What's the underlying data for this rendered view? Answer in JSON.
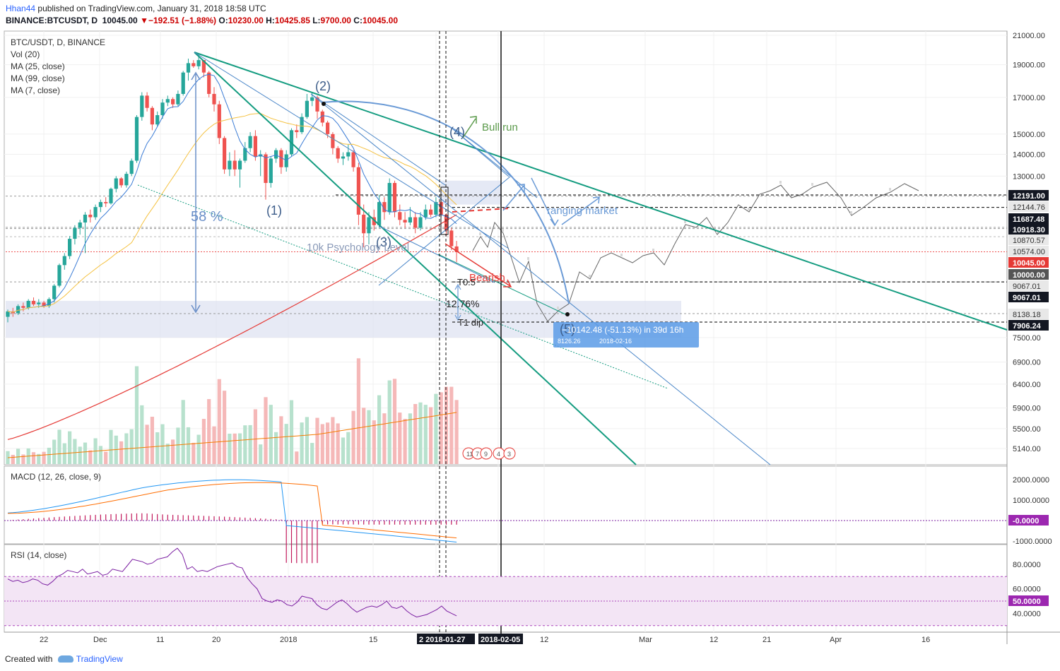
{
  "header": {
    "author": "Hhan44",
    "published_on": "published on TradingView.com, January 31, 2018 18:58 UTC",
    "symbol_line": "BINANCE:BTCUSDT, D",
    "last_value": "10045.00",
    "change": "−192.51 (−1.88%)",
    "open_label": "O:",
    "open": "10230.00",
    "high_label": "H:",
    "high": "10425.85",
    "low_label": "L:",
    "low": "9700.00",
    "close_label": "C:",
    "close": "10045.00"
  },
  "legend": {
    "title": "BTC/USDT, D, BINANCE",
    "items": [
      "Vol (20)",
      "MA (25, close)",
      "MA (99, close)",
      "MA (7, close)"
    ]
  },
  "macd_title": "MACD (12, 26, close, 9)",
  "rsi_title": "RSI (14, close)",
  "footer": {
    "created_with": "Created with",
    "brand": "TradingView"
  },
  "annotations": {
    "wave1": "(1)",
    "wave2": "(2)",
    "wave3": "(3)",
    "wave4": "(4)",
    "wave5": "(5)",
    "bull_run": "Bull run",
    "ranging": "ranging market",
    "psych": "10k Psychology Level",
    "bearish": "Bearish",
    "t05": "T0.5",
    "pct": "12.76%",
    "t1": "T1 dip",
    "drop_pct": "58 %",
    "measure": "−10142.48 (-51.13%) in 39d 16h",
    "measure_sub": "8126.26",
    "measure_date": "2018-02-16",
    "badge1": "11",
    "badge2": "7",
    "badge3": "9",
    "badge4": "4",
    "badge5": "3"
  },
  "colors": {
    "up": "#26a69a",
    "down": "#ef5350",
    "teal_line": "#149c80",
    "blue_line": "#4a86c8",
    "ma7": "#3a7bd5",
    "ma25": "#f5c242",
    "ma99": "#e53935",
    "macd": "#2196f3",
    "signal": "#ff6d00",
    "hist": "#c2185b",
    "rsi": "#7b1fa2",
    "rsi_band": "#f3e5f5"
  },
  "chart_data": {
    "type": "candlestick",
    "x_ticks": [
      "22",
      "Dec",
      "11",
      "20",
      "2018",
      "15",
      "2 2018-01-27",
      "2018-02-05",
      "12",
      "Mar",
      "12",
      "21",
      "Apr",
      "16"
    ],
    "price_axis": {
      "ticks": [
        21000,
        19000,
        17000,
        15000,
        14000,
        13000,
        7500,
        6900,
        6400,
        5900,
        5500,
        5140
      ],
      "labels": [
        "21000.00",
        "19000.00",
        "17000.00",
        "15000.00",
        "14000.00",
        "13000.00",
        "7500.00",
        "6900.00",
        "6400.00",
        "5900.00",
        "5500.00",
        "5140.00"
      ],
      "level_labels": [
        {
          "value": 12191.0,
          "text": "12191.00",
          "style": "black"
        },
        {
          "value": 12144.76,
          "text": "12144.76",
          "style": "grey"
        },
        {
          "value": 11687.48,
          "text": "11687.48",
          "style": "black"
        },
        {
          "value": 10918.3,
          "text": "10918.30",
          "style": "black"
        },
        {
          "value": 10870.57,
          "text": "10870.57",
          "style": "grey"
        },
        {
          "value": 10574.0,
          "text": "10574.00",
          "style": "grey"
        },
        {
          "value": 10045.0,
          "text": "10045.00",
          "style": "red"
        },
        {
          "value": 10000.0,
          "text": "10000.00",
          "style": "darkgrey"
        },
        {
          "value": 9067.01,
          "text": "9067.01",
          "style": "grey"
        },
        {
          "value": 9067.01,
          "text": "9067.01",
          "style": "black"
        },
        {
          "value": 8138.18,
          "text": "8138.18",
          "style": "grey"
        },
        {
          "value": 7906.24,
          "text": "7906.24",
          "style": "black"
        }
      ]
    },
    "macd_axis": {
      "labels": [
        "2000.0000",
        "1000.0000",
        "-0.0000",
        "-1000.0000"
      ],
      "values": [
        2000,
        1000,
        0,
        -1000
      ]
    },
    "rsi_axis": {
      "labels": [
        "80.0000",
        "60.0000",
        "50.0000",
        "40.0000"
      ],
      "values": [
        80,
        60,
        50,
        40
      ]
    },
    "candles": [
      [
        8050,
        8250,
        7900,
        8200
      ],
      [
        8200,
        8300,
        8050,
        8150
      ],
      [
        8150,
        8400,
        8100,
        8350
      ],
      [
        8350,
        8450,
        8200,
        8300
      ],
      [
        8300,
        8550,
        8250,
        8500
      ],
      [
        8500,
        8600,
        8350,
        8400
      ],
      [
        8400,
        8550,
        8300,
        8450
      ],
      [
        8450,
        8500,
        8300,
        8350
      ],
      [
        8350,
        8600,
        8300,
        8550
      ],
      [
        8550,
        9000,
        8450,
        8950
      ],
      [
        8950,
        9650,
        8900,
        9600
      ],
      [
        9600,
        10000,
        9450,
        9900
      ],
      [
        9900,
        10600,
        9800,
        10500
      ],
      [
        10500,
        11000,
        10300,
        10900
      ],
      [
        10900,
        11200,
        10650,
        11100
      ],
      [
        11100,
        11500,
        10000,
        11400
      ],
      [
        11400,
        11600,
        11100,
        11300
      ],
      [
        11300,
        11800,
        11200,
        11700
      ],
      [
        11700,
        12000,
        11500,
        11900
      ],
      [
        11900,
        12100,
        11700,
        11850
      ],
      [
        11850,
        12500,
        11800,
        12450
      ],
      [
        12450,
        13000,
        12300,
        12900
      ],
      [
        12900,
        12950,
        12500,
        12600
      ],
      [
        12600,
        13200,
        12500,
        13100
      ],
      [
        13100,
        13800,
        13000,
        13700
      ],
      [
        13700,
        16000,
        13600,
        15900
      ],
      [
        15900,
        17300,
        15700,
        17100
      ],
      [
        17100,
        17300,
        16200,
        16400
      ],
      [
        16400,
        16500,
        15200,
        15500
      ],
      [
        15500,
        16200,
        15400,
        16000
      ],
      [
        16000,
        16900,
        15800,
        16700
      ],
      [
        16700,
        17100,
        16500,
        16900
      ],
      [
        16900,
        17000,
        16400,
        16600
      ],
      [
        16600,
        17400,
        16500,
        17200
      ],
      [
        17200,
        18600,
        17100,
        18500
      ],
      [
        18500,
        19400,
        18000,
        19100
      ],
      [
        19100,
        19300,
        18800,
        18900
      ],
      [
        18900,
        19500,
        18700,
        19300
      ],
      [
        19300,
        19300,
        18200,
        18500
      ],
      [
        18500,
        18600,
        17000,
        17200
      ],
      [
        17200,
        17600,
        16200,
        16600
      ],
      [
        16600,
        16800,
        14500,
        14800
      ],
      [
        14800,
        14900,
        13100,
        13300
      ],
      [
        13300,
        14100,
        13000,
        13700
      ],
      [
        13700,
        14200,
        13000,
        13300
      ],
      [
        13300,
        13800,
        12500,
        13700
      ],
      [
        13700,
        14600,
        13600,
        14300
      ],
      [
        14300,
        15100,
        14100,
        14900
      ],
      [
        14900,
        15200,
        13700,
        13900
      ],
      [
        13900,
        14200,
        13000,
        14000
      ],
      [
        14000,
        14100,
        12000,
        12700
      ],
      [
        12700,
        13900,
        12500,
        13800
      ],
      [
        13800,
        14300,
        13600,
        14200
      ],
      [
        14200,
        14300,
        13100,
        13400
      ],
      [
        13400,
        14200,
        13200,
        14000
      ],
      [
        14000,
        15300,
        13900,
        15200
      ],
      [
        15200,
        15500,
        14800,
        15100
      ],
      [
        15100,
        16100,
        15000,
        15900
      ],
      [
        15900,
        17200,
        15800,
        16800
      ],
      [
        16800,
        17300,
        16500,
        17000
      ],
      [
        17000,
        17100,
        15800,
        16200
      ],
      [
        16200,
        16300,
        15400,
        15600
      ],
      [
        15600,
        15700,
        14800,
        15000
      ],
      [
        15000,
        15100,
        14000,
        14300
      ],
      [
        14300,
        14400,
        13600,
        13800
      ],
      [
        13800,
        14100,
        13500,
        13900
      ],
      [
        13900,
        14500,
        13700,
        14100
      ],
      [
        14100,
        14200,
        13200,
        13400
      ],
      [
        13400,
        13600,
        11000,
        11400
      ],
      [
        11400,
        11800,
        10200,
        10700
      ],
      [
        10700,
        11500,
        10300,
        11300
      ],
      [
        11300,
        11600,
        10800,
        11000
      ],
      [
        11000,
        12200,
        10900,
        11900
      ],
      [
        11900,
        12100,
        11200,
        11500
      ],
      [
        11500,
        12900,
        11400,
        12700
      ],
      [
        12700,
        12800,
        11300,
        11500
      ],
      [
        11500,
        11800,
        11000,
        11200
      ],
      [
        11200,
        11500,
        10900,
        11100
      ],
      [
        11100,
        11700,
        11000,
        11300
      ],
      [
        11300,
        11500,
        10700,
        10900
      ],
      [
        10900,
        11500,
        10800,
        11300
      ],
      [
        11300,
        11800,
        11200,
        11600
      ],
      [
        11600,
        11800,
        11300,
        11400
      ],
      [
        11400,
        12100,
        11300,
        11900
      ],
      [
        11900,
        11950,
        11300,
        11400
      ],
      [
        11400,
        11450,
        10600,
        10800
      ],
      [
        10800,
        10900,
        10100,
        10238
      ],
      [
        10230,
        10425,
        9700,
        10045
      ]
    ],
    "projection": [
      [
        669,
        355
      ],
      [
        680,
        335
      ],
      [
        690,
        350
      ],
      [
        700,
        315
      ],
      [
        712,
        330
      ],
      [
        722,
        360
      ],
      [
        735,
        400
      ],
      [
        748,
        370
      ],
      [
        760,
        430
      ],
      [
        775,
        455
      ],
      [
        790,
        440
      ],
      [
        805,
        430
      ],
      [
        820,
        385
      ],
      [
        835,
        395
      ],
      [
        850,
        365
      ],
      [
        865,
        358
      ],
      [
        880,
        365
      ],
      [
        895,
        372
      ],
      [
        910,
        362
      ],
      [
        925,
        358
      ],
      [
        940,
        375
      ],
      [
        955,
        345
      ],
      [
        970,
        318
      ],
      [
        985,
        322
      ],
      [
        1000,
        308
      ],
      [
        1015,
        332
      ],
      [
        1030,
        315
      ],
      [
        1045,
        290
      ],
      [
        1060,
        300
      ],
      [
        1075,
        275
      ],
      [
        1090,
        270
      ],
      [
        1105,
        262
      ],
      [
        1120,
        280
      ],
      [
        1135,
        275
      ],
      [
        1150,
        265
      ],
      [
        1170,
        258
      ],
      [
        1190,
        280
      ],
      [
        1205,
        305
      ],
      [
        1220,
        295
      ],
      [
        1240,
        280
      ],
      [
        1260,
        272
      ],
      [
        1280,
        260
      ],
      [
        1300,
        270
      ]
    ]
  }
}
